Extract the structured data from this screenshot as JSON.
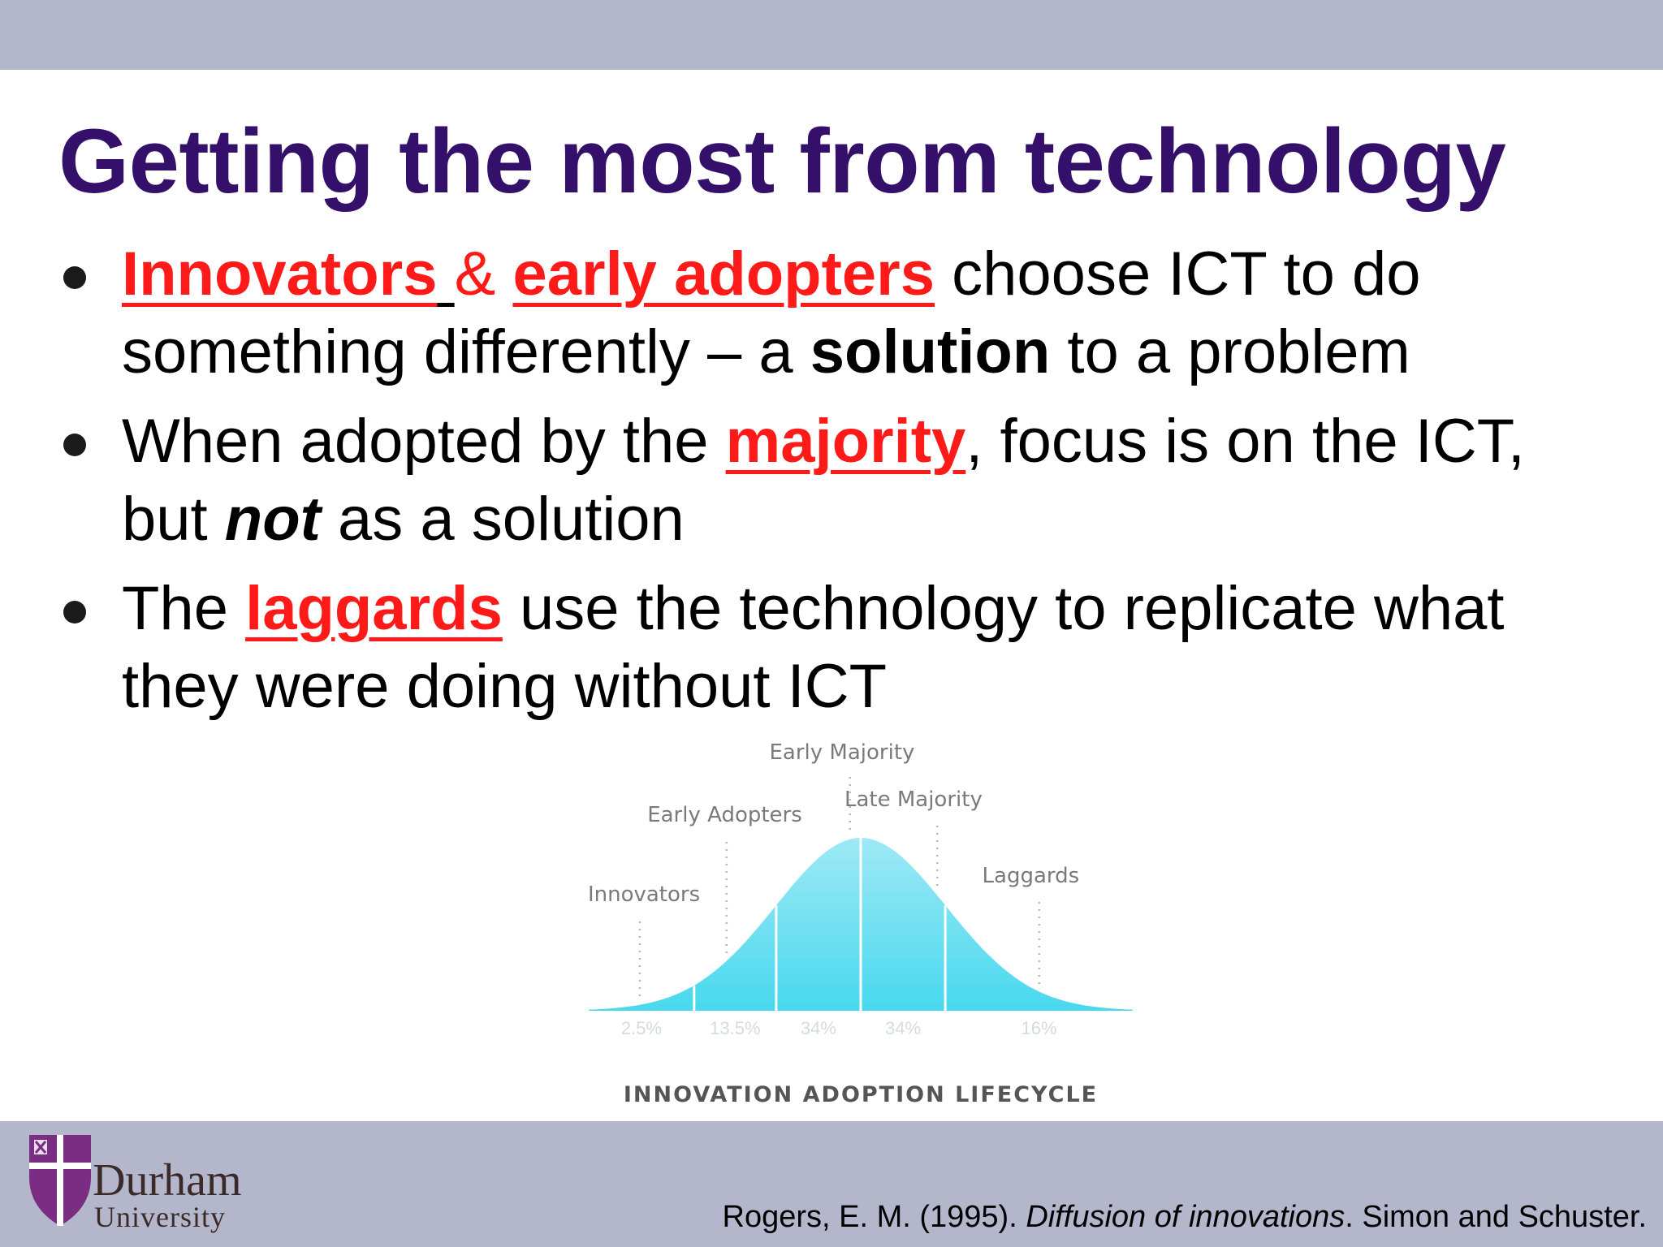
{
  "slide": {
    "title": "Getting the most from technology",
    "bullets": [
      {
        "parts": {
          "innovators": "Innovators",
          "space_under": " ",
          "amp": "&",
          "gap": " ",
          "early_adopters": "early adopters",
          "rest1": " choose ICT to do something differently – a ",
          "solution": "solution",
          "rest2": " to a problem"
        }
      },
      {
        "parts": {
          "lead": "When adopted by the ",
          "majority": "majority",
          "mid": ", focus  is on the ICT, but ",
          "not": "not",
          "tail": " as a solution"
        }
      },
      {
        "parts": {
          "lead": "The ",
          "laggards": "laggards",
          "tail": " use the technology to replicate what they were doing without ICT"
        }
      }
    ]
  },
  "chart_data": {
    "type": "area",
    "title": "INNOVATION ADOPTION LIFECYCLE",
    "categories": [
      "Innovators",
      "Early Adopters",
      "Early Majority",
      "Late Majority",
      "Laggards"
    ],
    "values": [
      2.5,
      13.5,
      34,
      34,
      16
    ],
    "value_labels": [
      "2.5%",
      "13.5%",
      "34%",
      "34%",
      "16%"
    ],
    "colors": {
      "fill_top": "#8fe6f3",
      "fill_bottom": "#4ad9ef",
      "label": "#7a7a7a",
      "divider": "#ffffff"
    }
  },
  "footer": {
    "logo_word": "Durham",
    "logo_sub": "University",
    "citation": {
      "before": "Rogers, E. M. (1995). ",
      "italic": "Diffusion of innovations",
      "after": ". Simon and Schuster."
    },
    "colors": {
      "band": "#b4b7cc",
      "logo_purple": "#7b2c83"
    }
  }
}
